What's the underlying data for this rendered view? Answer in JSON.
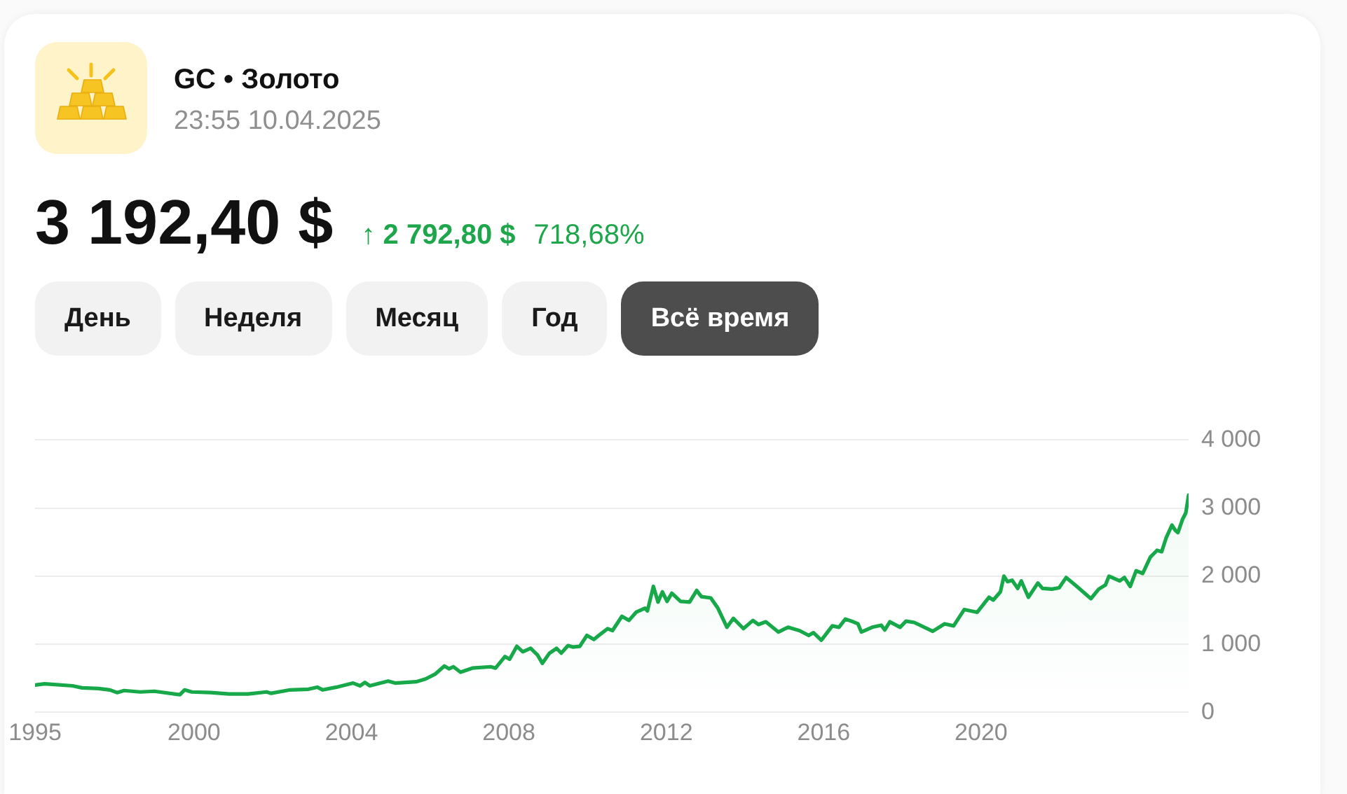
{
  "chart_data": {
    "type": "area",
    "title": "GC • Золото",
    "subtitle": "23:55 10.04.2025",
    "annotations": [
      "3 192,40 $",
      "↑ 2 792,80 $",
      "718,68%",
      "День",
      "Неделя",
      "Месяц",
      "Год",
      "Всё время"
    ],
    "x": [
      "1995-12-17",
      "1996-03-15",
      "1996-11-29",
      "1997-02-25",
      "1997-07-28",
      "1997-11-11",
      "1998-01-16",
      "1998-03-22",
      "1998-08-19",
      "1998-12-28",
      "1999-08-23",
      "1999-10-05",
      "1999-12-10",
      "2000-06-03",
      "2000-11-22",
      "2001-05-16",
      "2001-11-04",
      "2001-12-17",
      "2002-06-11",
      "2002-11-29",
      "2003-02-17",
      "2003-04-10",
      "2003-08-15",
      "2004-01-16",
      "2004-03-22",
      "2004-05-05",
      "2004-06-18",
      "2004-12-06",
      "2005-02-10",
      "2005-08-23",
      "2005-11-18",
      "2006-02-14",
      "2006-05-12",
      "2006-06-25",
      "2006-08-04",
      "2006-10-09",
      "2007-01-27",
      "2007-07-17",
      "2007-08-30",
      "2007-11-26",
      "2008-01-08",
      "2008-03-15",
      "2008-05-09",
      "2008-07-21",
      "2008-09-24",
      "2008-11-07",
      "2009-01-12",
      "2009-03-19",
      "2009-05-01",
      "2009-07-03",
      "2009-08-15",
      "2009-10-20",
      "2009-12-25",
      "2010-02-28",
      "2010-05-01",
      "2010-07-06",
      "2010-08-19",
      "2010-11-15",
      "2011-01-19",
      "2011-03-26",
      "2011-06-18",
      "2011-07-10",
      "2011-09-03",
      "2011-10-16",
      "2011-11-26",
      "2012-01-08",
      "2012-02-21",
      "2012-05-12",
      "2012-08-04",
      "2012-10-09",
      "2012-11-22",
      "2013-02-17",
      "2013-04-24",
      "2013-07-17",
      "2013-09-14",
      "2013-12-17",
      "2014-03-15",
      "2014-05-05",
      "2014-07-13",
      "2014-11-07",
      "2015-02-03",
      "2015-05-23",
      "2015-08-15",
      "2015-09-28",
      "2015-12-10",
      "2016-03-21",
      "2016-05-22",
      "2016-07-20",
      "2016-10-01",
      "2016-11-14",
      "2016-12-16",
      "2017-03-26",
      "2017-06-18",
      "2017-07-21",
      "2017-09-06",
      "2017-12-10",
      "2018-02-03",
      "2018-04-21",
      "2018-10-09",
      "2019-01-27",
      "2019-04-21",
      "2019-07-28",
      "2019-11-26",
      "2020-03-14",
      "2020-04-23",
      "2020-06-28",
      "2020-07-31",
      "2020-09-02",
      "2020-10-15",
      "2020-12-06",
      "2021-01-08",
      "2021-03-15",
      "2021-06-11",
      "2021-07-24",
      "2021-10-20",
      "2021-12-25",
      "2022-02-28",
      "2022-05-23",
      "2022-10-16",
      "2022-12-28",
      "2023-02-28",
      "2023-04-02",
      "2023-07-10",
      "2023-08-23",
      "2023-10-16",
      "2023-12-10",
      "2024-02-09",
      "2024-04-20",
      "2024-06-21",
      "2024-08-03",
      "2024-09-13",
      "2024-11-06",
      "2024-12-09",
      "2025-01-01",
      "2025-02-14",
      "2025-03-15",
      "2025-04-10"
    ],
    "series": [
      {
        "color": "#17a84a",
        "values": [
          400,
          420,
          390,
          360,
          350,
          330,
          290,
          320,
          300,
          310,
          260,
          330,
          300,
          290,
          270,
          270,
          300,
          280,
          330,
          340,
          370,
          330,
          370,
          430,
          390,
          440,
          390,
          460,
          430,
          450,
          490,
          560,
          680,
          640,
          670,
          590,
          650,
          670,
          650,
          820,
          780,
          970,
          890,
          940,
          840,
          720,
          870,
          940,
          870,
          980,
          960,
          970,
          1130,
          1070,
          1150,
          1230,
          1200,
          1410,
          1350,
          1470,
          1530,
          1490,
          1850,
          1620,
          1770,
          1630,
          1750,
          1630,
          1620,
          1790,
          1700,
          1680,
          1530,
          1250,
          1380,
          1230,
          1350,
          1290,
          1330,
          1180,
          1250,
          1200,
          1130,
          1170,
          1060,
          1270,
          1250,
          1370,
          1330,
          1300,
          1180,
          1250,
          1280,
          1210,
          1330,
          1250,
          1340,
          1320,
          1190,
          1300,
          1270,
          1510,
          1470,
          1690,
          1650,
          1770,
          2000,
          1920,
          1940,
          1820,
          1930,
          1690,
          1900,
          1820,
          1810,
          1830,
          1980,
          1870,
          1670,
          1810,
          1870,
          2000,
          1930,
          1980,
          1850,
          2080,
          2040,
          2280,
          2380,
          2360,
          2560,
          2750,
          2670,
          2640,
          2840,
          2930,
          3190
        ]
      }
    ],
    "xlim": [
      "1995-12-17",
      "2025-04-10"
    ],
    "xticks": [
      {
        "value": "1995-12-17",
        "label": "1995"
      },
      "2000",
      "2004",
      "2008",
      "2012",
      "2016",
      "2020"
    ],
    "ylim": [
      0,
      4000
    ],
    "yticks": [
      0,
      {
        "value": 1000,
        "label": "1 000"
      },
      {
        "value": 2000,
        "label": "2 000"
      },
      {
        "value": 3000,
        "label": "3 000"
      },
      {
        "value": 4000,
        "label": "4 000"
      }
    ],
    "grid": "y"
  }
}
